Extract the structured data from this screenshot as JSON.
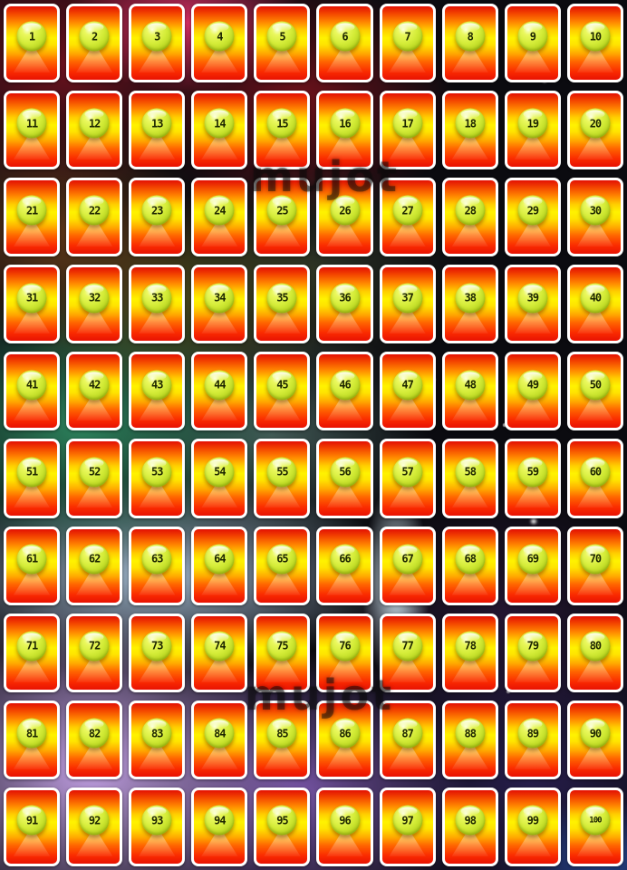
{
  "board": {
    "rows": 10,
    "cols": 10,
    "card_numbers": [
      1,
      2,
      3,
      4,
      5,
      6,
      7,
      8,
      9,
      10,
      11,
      12,
      13,
      14,
      15,
      16,
      17,
      18,
      19,
      20,
      21,
      22,
      23,
      24,
      25,
      26,
      27,
      28,
      29,
      30,
      31,
      32,
      33,
      34,
      35,
      36,
      37,
      38,
      39,
      40,
      41,
      42,
      43,
      44,
      45,
      46,
      47,
      48,
      49,
      50,
      51,
      52,
      53,
      54,
      55,
      56,
      57,
      58,
      59,
      60,
      61,
      62,
      63,
      64,
      65,
      66,
      67,
      68,
      69,
      70,
      71,
      72,
      73,
      74,
      75,
      76,
      77,
      78,
      79,
      80,
      81,
      82,
      83,
      84,
      85,
      86,
      87,
      88,
      89,
      90,
      91,
      92,
      93,
      94,
      95,
      96,
      97,
      98,
      99,
      100
    ]
  },
  "watermark": {
    "text": "mujot"
  },
  "colors": {
    "card_border": "#ffffff",
    "card_gradient_top": "#e31104",
    "card_gradient_middle": "#fff200",
    "card_gradient_bottom": "#e81203",
    "badge_fill": "#d4ec38",
    "badge_edge": "#94b212",
    "badge_text": "#1d2600",
    "watermark_color": "rgba(12,12,12,0.48)"
  }
}
